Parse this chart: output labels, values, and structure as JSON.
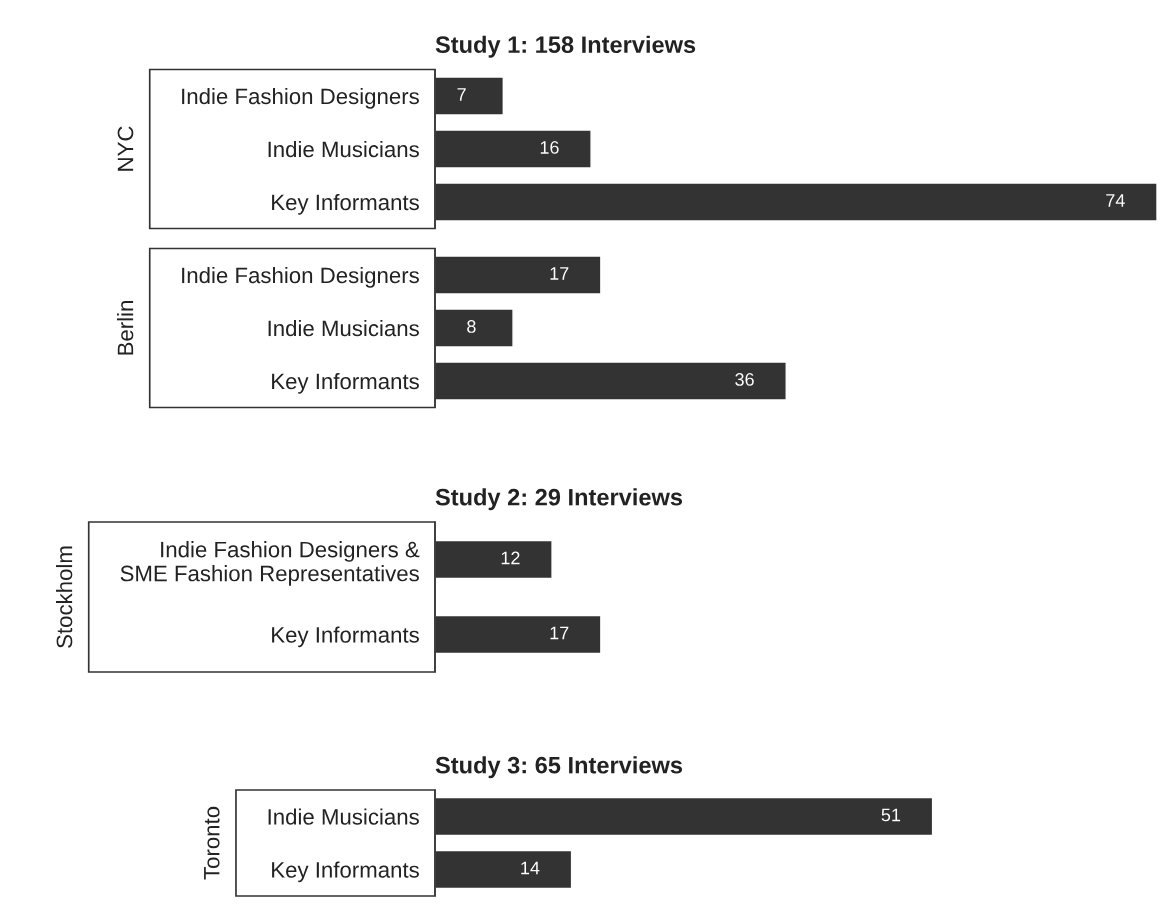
{
  "chart_data": [
    {
      "type": "bar",
      "orientation": "horizontal",
      "title": "Study 1: 158 Interviews",
      "ylabel": "NYC",
      "categories": [
        "Indie Fashion Designers",
        "Indie Musicians",
        "Key Informants"
      ],
      "values": [
        7,
        16,
        74
      ],
      "color": "#333333",
      "data_labels": true
    },
    {
      "type": "bar",
      "orientation": "horizontal",
      "ylabel": "Berlin",
      "categories": [
        "Indie Fashion Designers",
        "Indie Musicians",
        "Key Informants"
      ],
      "values": [
        17,
        8,
        36
      ],
      "color": "#333333",
      "data_labels": true
    },
    {
      "type": "bar",
      "orientation": "horizontal",
      "title": "Study 2: 29 Interviews",
      "ylabel": "Stockholm",
      "categories": [
        "Indie Fashion Designers &\nSME Fashion Representatives",
        "Key Informants"
      ],
      "values": [
        12,
        17
      ],
      "color": "#333333",
      "data_labels": true
    },
    {
      "type": "bar",
      "orientation": "horizontal",
      "title": "Study 3: 65 Interviews",
      "ylabel": "Toronto",
      "categories": [
        "Indie Musicians",
        "Key Informants"
      ],
      "values": [
        51,
        14
      ],
      "color": "#333333",
      "data_labels": true
    }
  ]
}
